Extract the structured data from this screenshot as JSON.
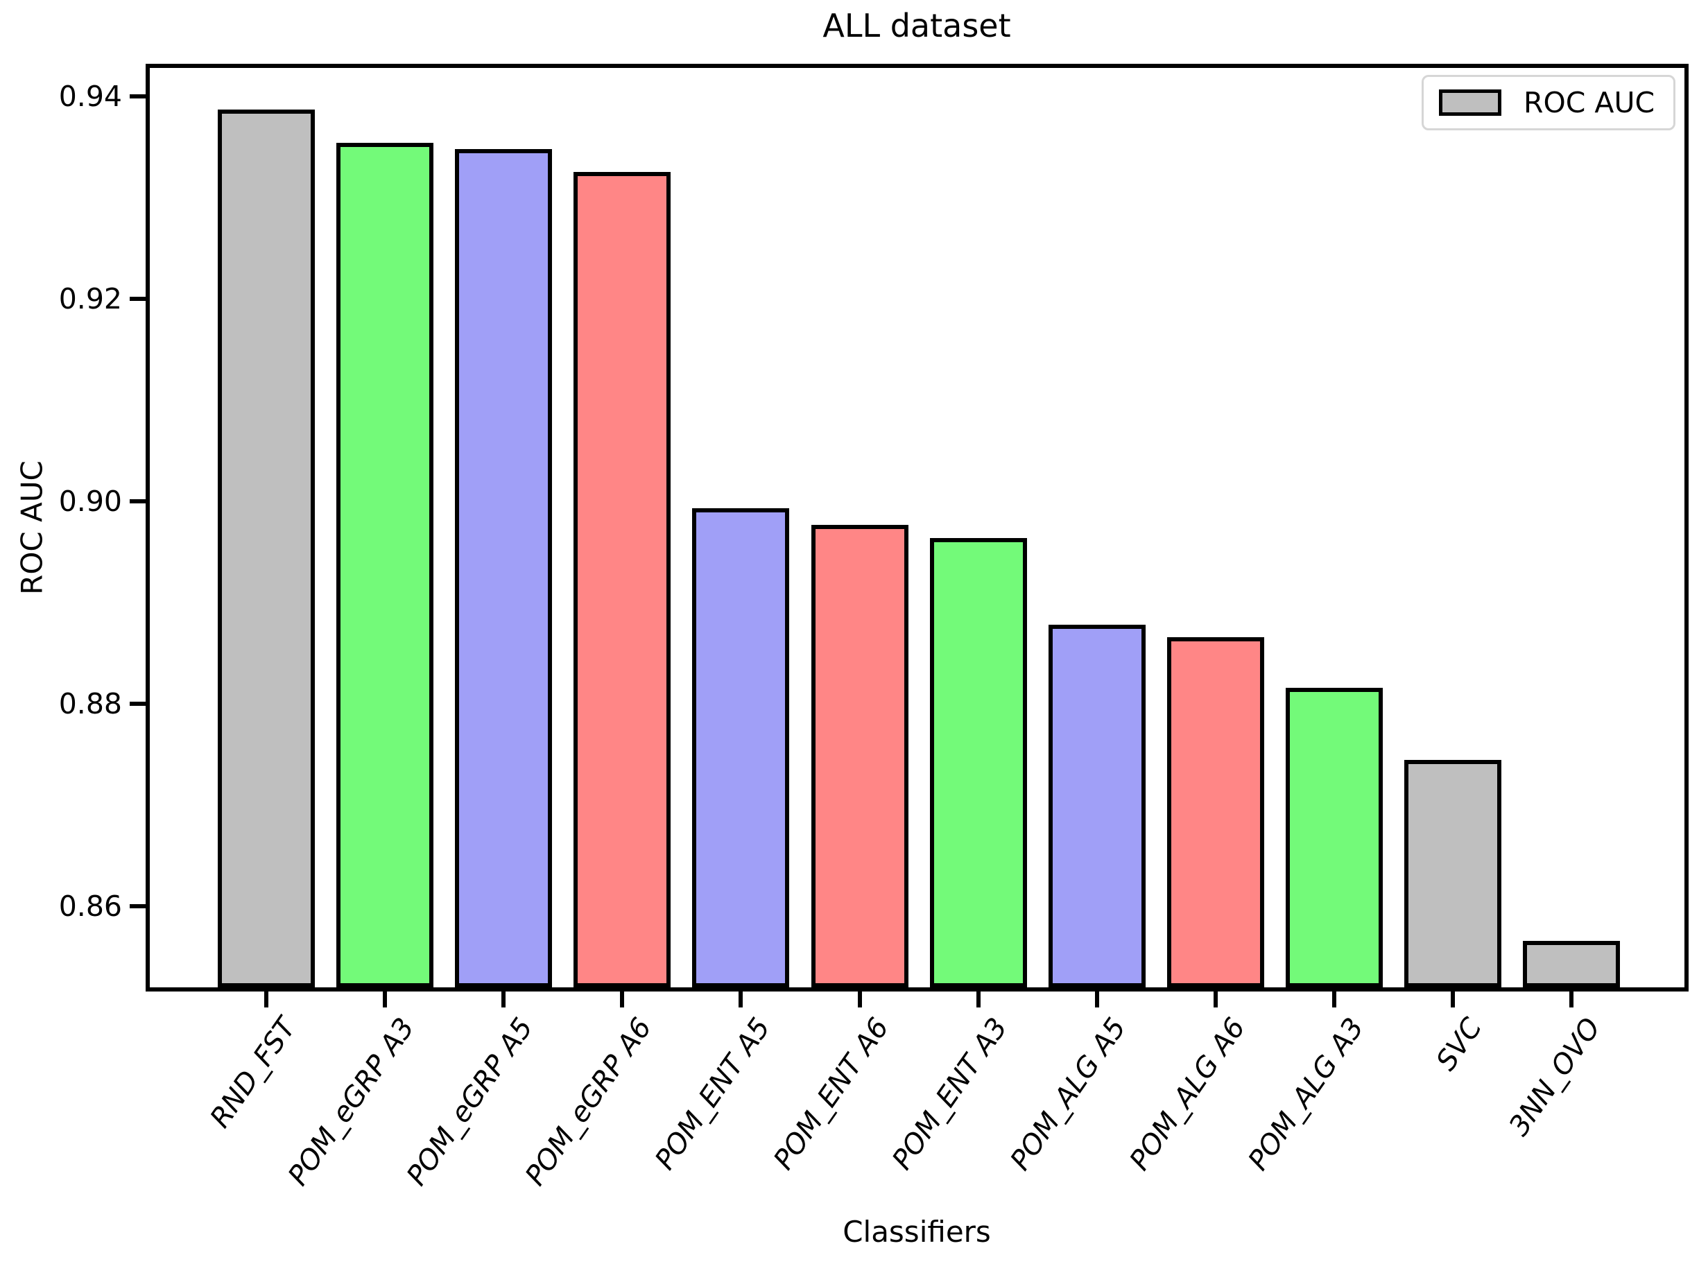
{
  "chart_data": {
    "type": "bar",
    "title": "ALL dataset",
    "xlabel": "Classifiers",
    "ylabel": "ROC AUC",
    "categories": [
      "RND_FST",
      "POM_eGRP A3",
      "POM_eGRP A5",
      "POM_eGRP A6",
      "POM_ENT A5",
      "POM_ENT A6",
      "POM_ENT A3",
      "POM_ALG A5",
      "POM_ALG A6",
      "POM_ALG A3",
      "SVC",
      "3NN_OVO"
    ],
    "values": [
      0.9387,
      0.9354,
      0.9348,
      0.9325,
      0.8993,
      0.8977,
      0.8964,
      0.8878,
      0.8866,
      0.8816,
      0.8745,
      0.8566
    ],
    "bar_colors": [
      "#bfbfbf",
      "#73fa79",
      "#a09ff7",
      "#ff8686",
      "#a09ff7",
      "#ff8686",
      "#73fa79",
      "#a09ff7",
      "#ff8686",
      "#73fa79",
      "#bfbfbf",
      "#bfbfbf"
    ],
    "bar_edge_color": "#000000",
    "yticks": [
      0.94,
      0.92,
      0.9,
      0.88,
      0.86
    ],
    "ytick_labels": [
      "0.94",
      "0.92",
      "0.90",
      "0.88",
      "0.86"
    ],
    "ylim": [
      0.8516,
      0.9432
    ],
    "grid": false,
    "xtick_label_style": "italic",
    "xtick_rotation_deg": 55,
    "legend": {
      "position": "upper right",
      "entries": [
        {
          "label": "ROC AUC",
          "color": "#bfbfbf"
        }
      ]
    }
  }
}
